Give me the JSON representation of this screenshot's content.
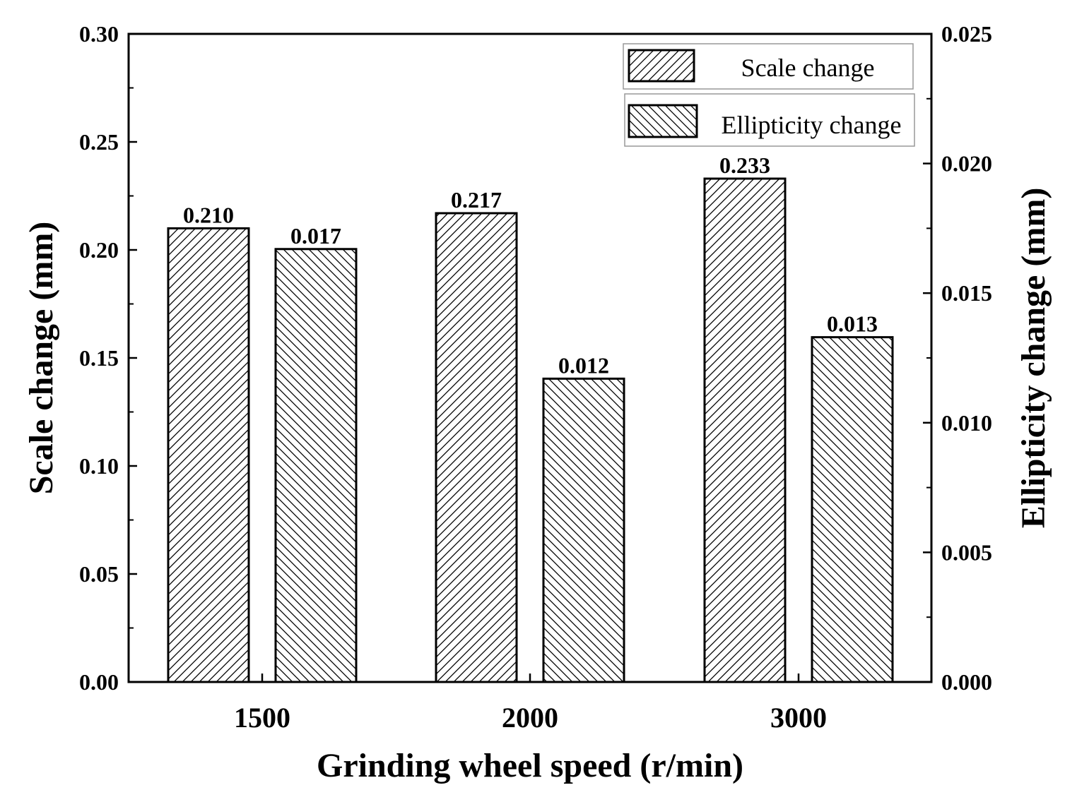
{
  "chart_data": {
    "type": "bar",
    "categories": [
      "1500",
      "2000",
      "3000"
    ],
    "series": [
      {
        "name": "Scale change",
        "axis": "left",
        "values": [
          0.21,
          0.217,
          0.233
        ],
        "labels": [
          "0.210",
          "0.217",
          "0.233"
        ],
        "pattern": "hatch-forward"
      },
      {
        "name": "Ellipticity change",
        "axis": "right",
        "values": [
          0.0167,
          0.0117,
          0.0133
        ],
        "labels": [
          "0.017",
          "0.012",
          "0.013"
        ],
        "pattern": "hatch-backward"
      }
    ],
    "xlabel": "Grinding wheel speed (r/min)",
    "ylabel": "Scale  change (mm)",
    "y2label": "Ellipticity change (mm)",
    "ylim": [
      0,
      0.3
    ],
    "y2lim": [
      0,
      0.025
    ],
    "yticks": [
      "0.00",
      "0.05",
      "0.10",
      "0.15",
      "0.20",
      "0.25",
      "0.30"
    ],
    "y2ticks": [
      "0.000",
      "0.005",
      "0.010",
      "0.015",
      "0.020",
      "0.025"
    ],
    "legend_position": "top-right",
    "grid": false,
    "colors": {
      "bar_fill": "#ffffff",
      "stroke": "#000000"
    }
  }
}
